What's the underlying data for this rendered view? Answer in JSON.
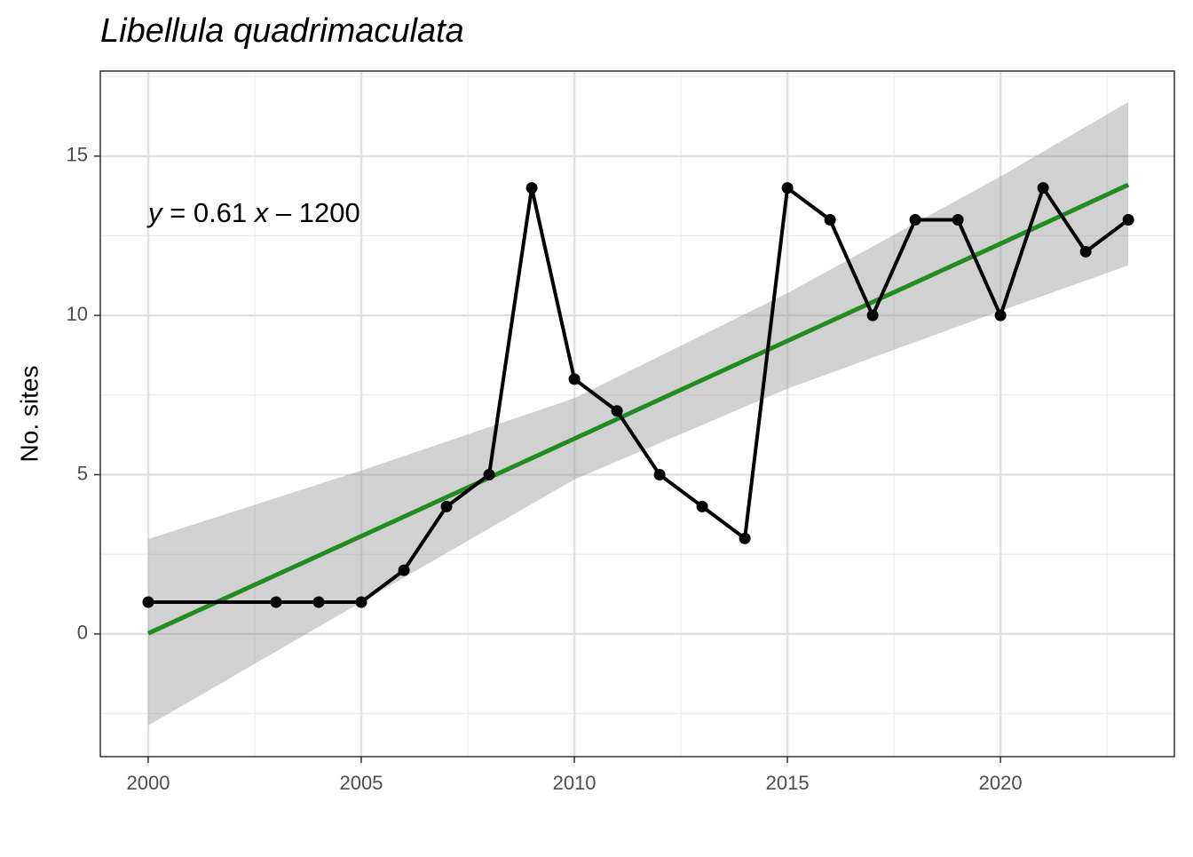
{
  "chart_data": {
    "type": "line",
    "title": "Libellula quadrimaculata",
    "ylabel": "No. sites",
    "annotation": [
      "y",
      " = 0.61 ",
      "x",
      " – 1200"
    ],
    "x": [
      2000,
      2003,
      2004,
      2005,
      2006,
      2007,
      2008,
      2009,
      2010,
      2011,
      2012,
      2013,
      2014,
      2015,
      2016,
      2017,
      2018,
      2019,
      2020,
      2021,
      2022,
      2023
    ],
    "series": [
      {
        "color": "#000000",
        "values": [
          1,
          1,
          1,
          1,
          2,
          4,
          5,
          14,
          8,
          7,
          5,
          4,
          3,
          14,
          13,
          10,
          13,
          13,
          10,
          14,
          12,
          13
        ]
      }
    ],
    "trend": {
      "color": "#228b22",
      "band_color": "#999999",
      "x": [
        2000,
        2005,
        2010,
        2015,
        2020,
        2023
      ],
      "values": [
        0.02,
        3.07,
        6.13,
        9.2,
        12.25,
        14.1
      ],
      "lower": [
        -2.87,
        1.0,
        4.85,
        7.7,
        10.14,
        11.57
      ],
      "upper": [
        2.98,
        5.13,
        7.4,
        10.7,
        14.36,
        16.7
      ]
    },
    "xlim": [
      1998.875,
      2024.08
    ],
    "ylim": [
      -3.85,
      17.67
    ],
    "xticks": [
      2000,
      2005,
      2010,
      2015,
      2020
    ],
    "yticks": [
      0,
      5,
      10,
      15
    ],
    "xminor": [
      2002.5,
      2007.5,
      2012.5,
      2017.5,
      2022.5
    ],
    "yminor": [
      -2.5,
      2.5,
      7.5,
      12.5,
      17.5
    ],
    "grid": true
  }
}
